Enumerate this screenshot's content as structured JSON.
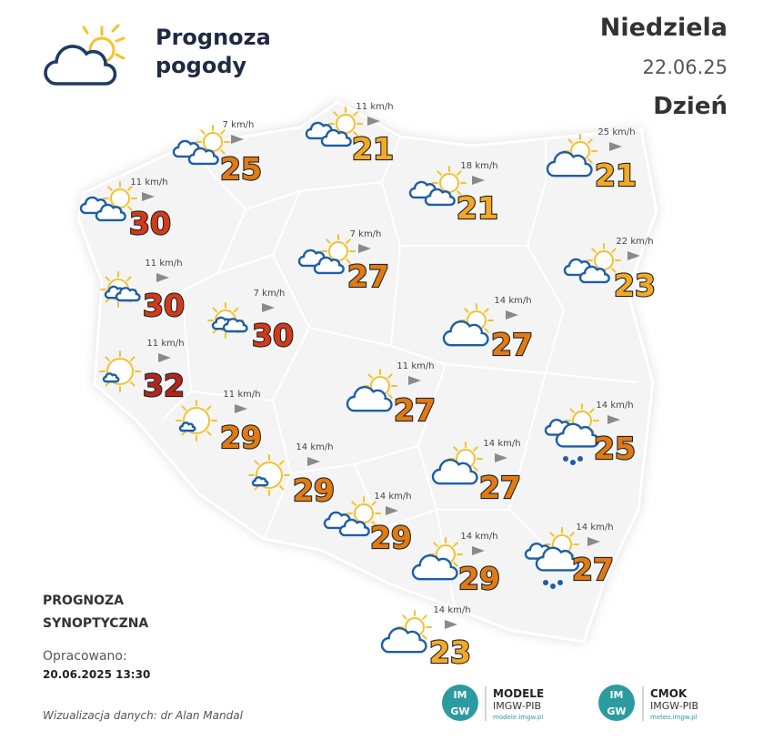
{
  "header": {
    "title_lines": [
      "Prognoza",
      "pogody"
    ],
    "day": "Niedziela",
    "date": "22.06.25",
    "period": "Dzień"
  },
  "stations": [
    {
      "temp": "21",
      "wind": "11 km/h"
    },
    {
      "temp": "25",
      "wind": "7 km/h"
    },
    {
      "temp": "21",
      "wind": "25 km/h"
    },
    {
      "temp": "21",
      "wind": "18 km/h"
    },
    {
      "temp": "30",
      "wind": "11 km/h"
    },
    {
      "temp": "27",
      "wind": "7 km/h"
    },
    {
      "temp": "23",
      "wind": "22 km/h"
    },
    {
      "temp": "30",
      "wind": "11 km/h"
    },
    {
      "temp": "30",
      "wind": "7 km/h"
    },
    {
      "temp": "27",
      "wind": "14 km/h"
    },
    {
      "temp": "32",
      "wind": "11 km/h"
    },
    {
      "temp": "27",
      "wind": "11 km/h"
    },
    {
      "temp": "29",
      "wind": "11 km/h"
    },
    {
      "temp": "25",
      "wind": "14 km/h"
    },
    {
      "temp": "29",
      "wind": "14 km/h"
    },
    {
      "temp": "27",
      "wind": "14 km/h"
    },
    {
      "temp": "29",
      "wind": "14 km/h"
    },
    {
      "temp": "29",
      "wind": "14 km/h"
    },
    {
      "temp": "27",
      "wind": "14 km/h"
    },
    {
      "temp": "23",
      "wind": "14 km/h"
    }
  ],
  "footer": {
    "label_lines": [
      "PROGNOZA",
      "SYNOPTYCZNA"
    ],
    "prepared_label": "Opracowano:",
    "prepared_at": "20.06.2025 13:30",
    "credit": "Wizualizacja danych: dr Alan Mandal"
  },
  "logos": [
    {
      "mark_top": "IM",
      "mark_bottom": "GW",
      "name": "MODELE",
      "org": "IMGW-PIB",
      "url": "modele.imgw.pl"
    },
    {
      "mark_top": "IM",
      "mark_bottom": "GW",
      "name": "CMOK",
      "org": "IMGW-PIB",
      "url": "meteo.imgw.pl"
    }
  ]
}
